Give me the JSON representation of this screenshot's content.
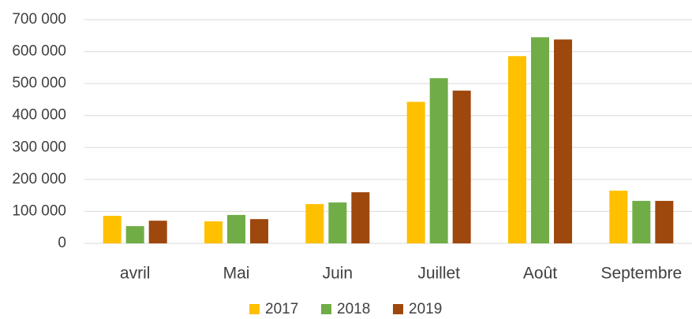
{
  "chart_data": {
    "type": "bar",
    "categories": [
      "avril",
      "Mai",
      "Juin",
      "Juillet",
      "Août",
      "Septembre"
    ],
    "series": [
      {
        "name": "2017",
        "color": "#ffc000",
        "values": [
          86000,
          69000,
          123000,
          443000,
          586000,
          165000
        ]
      },
      {
        "name": "2018",
        "color": "#70ad47",
        "values": [
          54000,
          89000,
          128000,
          517000,
          645000,
          133000
        ]
      },
      {
        "name": "2019",
        "color": "#9e480e",
        "values": [
          71000,
          76000,
          160000,
          478000,
          638000,
          133000
        ]
      }
    ],
    "ylim": [
      0,
      700000
    ],
    "yticks": [
      0,
      {
        "value": 100000,
        "label": "100 000"
      },
      {
        "value": 200000,
        "label": "200 000"
      },
      {
        "value": 300000,
        "label": "300 000"
      },
      {
        "value": 400000,
        "label": "400 000"
      },
      {
        "value": 500000,
        "label": "500 000"
      },
      {
        "value": 600000,
        "label": "600 000"
      },
      {
        "value": 700000,
        "label": "700 000"
      }
    ],
    "grid": true,
    "legend": "bottom"
  }
}
